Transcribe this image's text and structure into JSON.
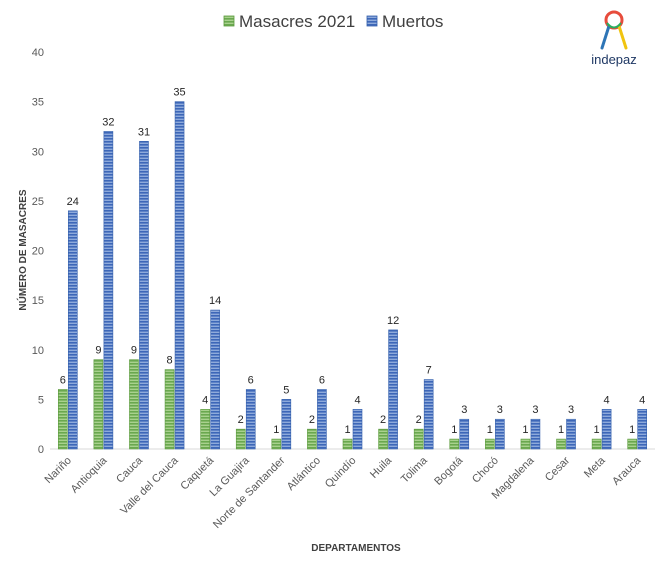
{
  "chart_data": {
    "type": "bar",
    "categories": [
      "Nariño",
      "Antioquia",
      "Cauca",
      "Valle del Cauca",
      "Caquetá",
      "La Guajira",
      "Norte de Santander",
      "Atlántico",
      "Quindío",
      "Huila",
      "Tolima",
      "Bogotá",
      "Chocó",
      "Magdalena",
      "Cesar",
      "Meta",
      "Arauca"
    ],
    "series": [
      {
        "name": "Masacres 2021",
        "values": [
          6,
          9,
          9,
          8,
          4,
          2,
          1,
          2,
          1,
          2,
          2,
          1,
          1,
          1,
          1,
          1,
          1
        ],
        "color": "#70ad47"
      },
      {
        "name": "Muertos",
        "values": [
          24,
          32,
          31,
          35,
          14,
          6,
          5,
          6,
          4,
          12,
          7,
          3,
          3,
          3,
          3,
          4,
          4
        ],
        "color": "#4472c4"
      }
    ],
    "xlabel": "DEPARTAMENTOS",
    "ylabel": "NÚMERO DE MASACRES",
    "ylim": [
      0,
      40
    ],
    "yticks": [
      0,
      5,
      10,
      15,
      20,
      25,
      30,
      35,
      40
    ],
    "grid": false,
    "legend": "top-center",
    "data_labels": true
  },
  "logo": {
    "text": "indepaz",
    "icon": "ribbon-logo-icon"
  }
}
